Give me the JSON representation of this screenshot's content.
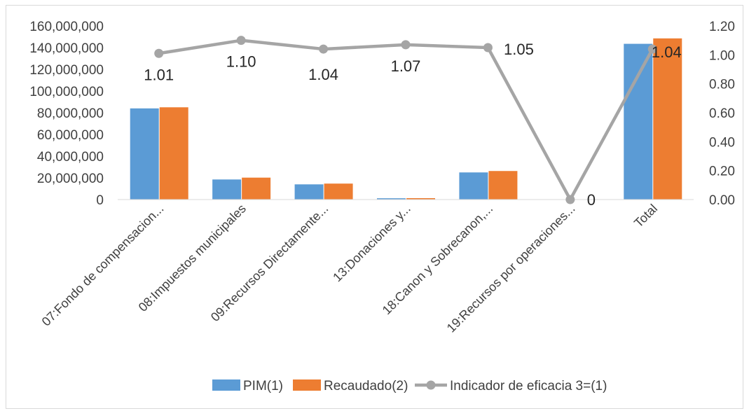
{
  "chart_data": {
    "type": "bar",
    "categories": [
      "07:Fondo de compensacion...",
      "08:Impuestos municipales",
      "09:Recursos Directamente...",
      "13:Donaciones y...",
      "18:Canon y Sobrecanon,...",
      "19:Recursos por operaciones...",
      "Total"
    ],
    "series": [
      {
        "name": "PIM(1)",
        "type": "bar",
        "axis": "left",
        "color": "#5B9BD5",
        "values": [
          84000000,
          18500000,
          14000000,
          1200000,
          25000000,
          0,
          143500000
        ]
      },
      {
        "name": "Recaudado(2)",
        "type": "bar",
        "axis": "left",
        "color": "#ED7D31",
        "values": [
          85000000,
          20200000,
          14700000,
          1300000,
          26300000,
          0,
          148500000
        ]
      },
      {
        "name": "Indicador de eficacia 3=(1)",
        "type": "line",
        "axis": "right",
        "color": "#A5A5A5",
        "values": [
          1.01,
          1.1,
          1.04,
          1.07,
          1.05,
          0,
          1.04
        ]
      }
    ],
    "data_labels": [
      "1.01",
      "1.10",
      "1.04",
      "1.07",
      "1.05",
      "0",
      "1.04"
    ],
    "y_left": {
      "range": [
        0,
        160000000
      ],
      "ticks": [
        0,
        20000000,
        40000000,
        60000000,
        80000000,
        100000000,
        120000000,
        140000000,
        160000000
      ],
      "tick_labels": [
        "0",
        "20,000,000",
        "40,000,000",
        "60,000,000",
        "80,000,000",
        "100,000,000",
        "120,000,000",
        "140,000,000",
        "160,000,000"
      ]
    },
    "y_right": {
      "range": [
        0,
        1.2
      ],
      "ticks": [
        0,
        0.2,
        0.4,
        0.6,
        0.8,
        1.0,
        1.2
      ],
      "tick_labels": [
        "0.00",
        "0.20",
        "0.40",
        "0.60",
        "0.80",
        "1.00",
        "1.20"
      ]
    },
    "grid": false,
    "legend_position": "bottom",
    "title": "",
    "xlabel": "",
    "ylabel": ""
  }
}
